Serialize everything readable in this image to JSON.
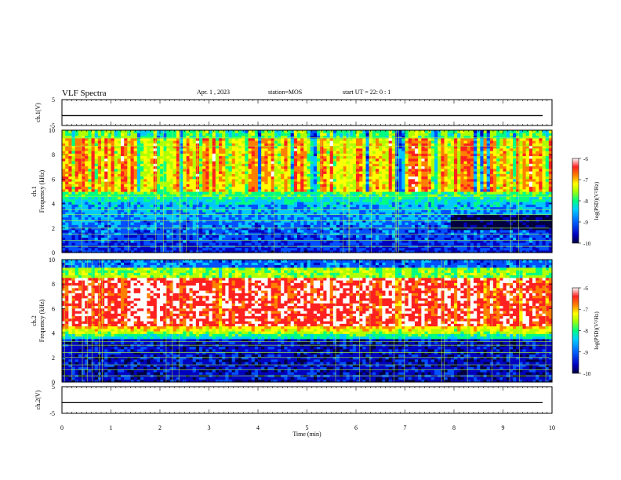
{
  "header": {
    "title": "VLF Spectra",
    "date": "Apr. 1 , 2023",
    "station": "station=MOS",
    "start_ut": "start UT =  22: 0  : 1"
  },
  "chart_data": {
    "type": "heatmap",
    "x_axis": {
      "label": "Time (min)",
      "range": [
        0,
        10
      ],
      "ticks": [
        "0",
        "1",
        "2",
        "3",
        "4",
        "5",
        "6",
        "7",
        "8",
        "9",
        "10"
      ]
    },
    "panels": [
      {
        "id": "ch1_voltage",
        "type": "line",
        "ylabel": "ch.1(V)",
        "yrange": [
          -5,
          5
        ],
        "yticks": [
          "5",
          "-5"
        ],
        "baseline_value": -1.2
      },
      {
        "id": "ch1_spectrogram",
        "type": "heatmap",
        "ylabel_line1": "ch.1",
        "ylabel_line2": "Frequency (kHz)",
        "yrange": [
          0,
          10
        ],
        "yticks": [
          "0",
          "2",
          "4",
          "6",
          "8",
          "10"
        ],
        "noise_bands_khz": [
          0.5,
          1.0,
          1.5,
          2.0,
          2.6,
          3.1,
          3.5,
          4.6,
          8.7,
          9.4
        ],
        "colorbar": {
          "label": "log(PSD)(V²/Hz)",
          "range": [
            -10,
            -6
          ],
          "ticks": [
            "-6",
            "-7",
            "-8",
            "-9",
            "-10"
          ]
        }
      },
      {
        "id": "ch2_spectrogram",
        "type": "heatmap",
        "ylabel_line1": "ch.2",
        "ylabel_line2": "Frequency (kHz)",
        "yrange": [
          0,
          10
        ],
        "yticks": [
          "0",
          "2",
          "4",
          "6",
          "8",
          "10"
        ],
        "noise_bands_khz": [
          0.5,
          1.0,
          1.4,
          2.0,
          2.4,
          3.0,
          3.3
        ],
        "colorbar": {
          "label": "log(PSD)(V²/Hz)",
          "range": [
            -10,
            -6
          ],
          "ticks": [
            "-6",
            "-7",
            "-8",
            "-9",
            "-10"
          ]
        }
      },
      {
        "id": "ch2_voltage",
        "type": "line",
        "ylabel": "ch.2(V)",
        "yrange": [
          -5,
          5
        ],
        "yticks": [
          "5",
          "-5"
        ],
        "baseline_value": -1.0
      }
    ],
    "colormap": [
      "#000040",
      "#0000c0",
      "#0050ff",
      "#00c8ff",
      "#00ff80",
      "#b0ff00",
      "#ffff00",
      "#ff8000",
      "#ff2020",
      "#ffffff"
    ]
  }
}
